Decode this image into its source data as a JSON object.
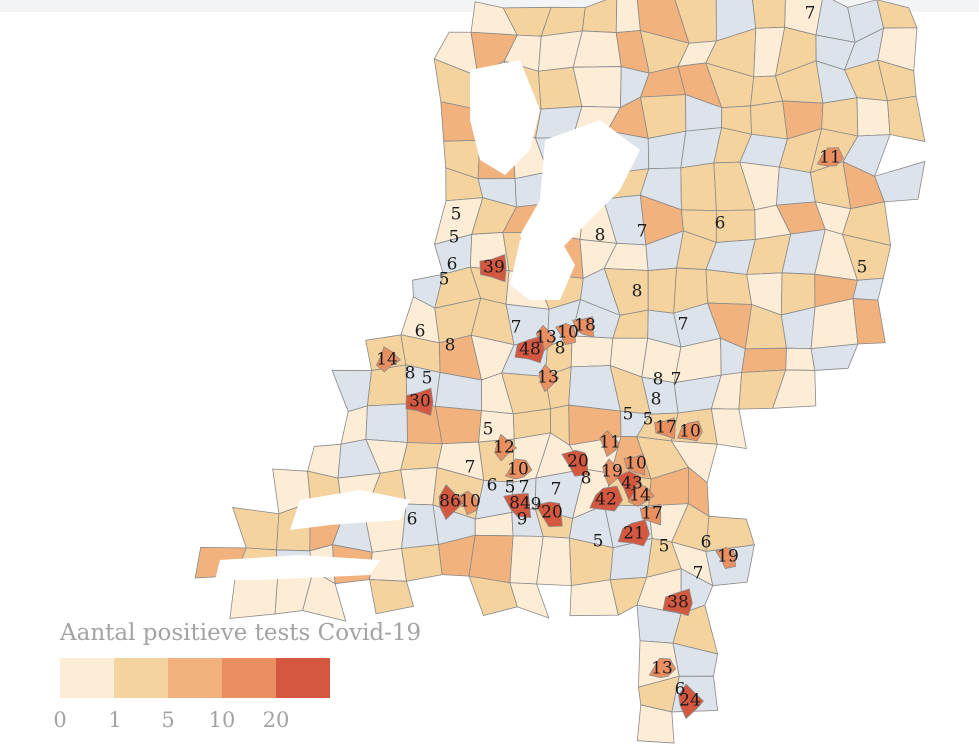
{
  "legend": {
    "title": "Aantal positieve tests Covid-19",
    "bins": [
      {
        "label": "0",
        "color": "#fdecd6"
      },
      {
        "label": "1",
        "color": "#f5d39f"
      },
      {
        "label": "5",
        "color": "#f2b27e"
      },
      {
        "label": "10",
        "color": "#ea8f60"
      },
      {
        "label": "20",
        "color": "#d45840"
      }
    ],
    "no_data_color": "#dde3ea"
  },
  "counts": [
    "7",
    "11",
    "5",
    "5",
    "6",
    "5",
    "39",
    "8",
    "7",
    "6",
    "5",
    "8",
    "7",
    "6",
    "8",
    "7",
    "13",
    "10",
    "18",
    "48",
    "8",
    "14",
    "13",
    "8",
    "5",
    "30",
    "8",
    "7",
    "8",
    "5",
    "5",
    "17",
    "10",
    "5",
    "12",
    "11",
    "20",
    "10",
    "7",
    "10",
    "8",
    "19",
    "43",
    "6",
    "5",
    "7",
    "7",
    "86",
    "10",
    "84",
    "9",
    "42",
    "14",
    "6",
    "9",
    "20",
    "17",
    "21",
    "5",
    "5",
    "6",
    "19",
    "7",
    "38",
    "13",
    "6",
    "24"
  ]
}
